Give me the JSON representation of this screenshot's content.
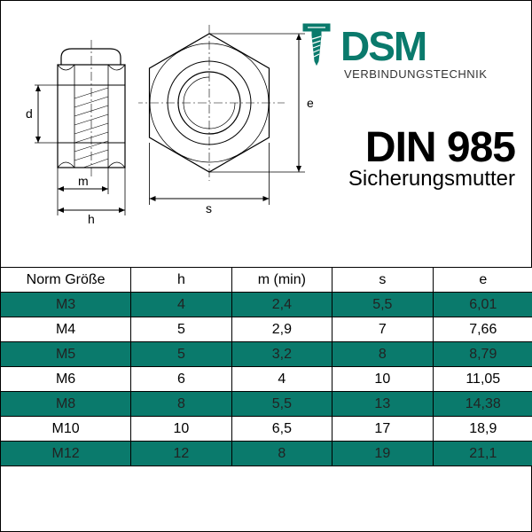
{
  "logo": {
    "brand_d": "D",
    "brand_s": "S",
    "brand_m": "M",
    "subtitle": "VERBINDUNGSTECHNIK",
    "brand_color": "#0a7a6c"
  },
  "title": {
    "din": "DIN 985",
    "name": "Sicherungsmutter"
  },
  "drawing": {
    "side_labels": {
      "d": "d",
      "m": "m",
      "h": "h"
    },
    "top_labels": {
      "s": "s",
      "e": "e"
    },
    "line_color": "#000000",
    "line_width": 1.2
  },
  "table": {
    "header_bg": "#ffffff",
    "row_odd_bg": "#0a7a6c",
    "row_even_bg": "#ffffff",
    "border_color": "#000000",
    "font_size": 16,
    "columns": [
      "Norm Größe",
      "h",
      "m (min)",
      "s",
      "e"
    ],
    "rows": [
      [
        "M3",
        "4",
        "2,4",
        "5,5",
        "6,01"
      ],
      [
        "M4",
        "5",
        "2,9",
        "7",
        "7,66"
      ],
      [
        "M5",
        "5",
        "3,2",
        "8",
        "8,79"
      ],
      [
        "M6",
        "6",
        "4",
        "10",
        "11,05"
      ],
      [
        "M8",
        "8",
        "5,5",
        "13",
        "14,38"
      ],
      [
        "M10",
        "10",
        "6,5",
        "17",
        "18,9"
      ],
      [
        "M12",
        "12",
        "8",
        "19",
        "21,1"
      ]
    ]
  }
}
